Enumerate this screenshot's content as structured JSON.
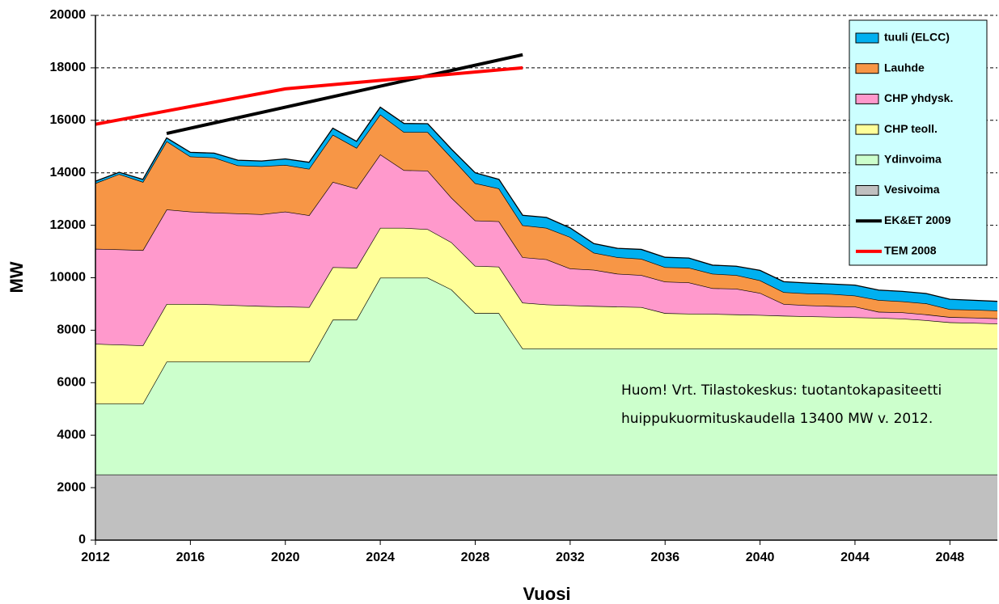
{
  "chart_data": {
    "type": "stacked-area",
    "x_label": "Vuosi",
    "y_label": "MW",
    "x": [
      2012,
      2013,
      2014,
      2015,
      2016,
      2017,
      2018,
      2019,
      2020,
      2021,
      2022,
      2023,
      2024,
      2025,
      2026,
      2027,
      2028,
      2029,
      2030,
      2031,
      2032,
      2033,
      2034,
      2035,
      2036,
      2037,
      2038,
      2039,
      2040,
      2041,
      2042,
      2043,
      2044,
      2045,
      2046,
      2047,
      2048,
      2049,
      2050
    ],
    "xlim": [
      2012,
      2050
    ],
    "xticks": [
      2012,
      2016,
      2020,
      2024,
      2028,
      2032,
      2036,
      2040,
      2044,
      2048
    ],
    "ylim": [
      0,
      20000
    ],
    "yticks": [
      0,
      2000,
      4000,
      6000,
      8000,
      10000,
      12000,
      14000,
      16000,
      18000,
      20000
    ],
    "grid": true,
    "series": [
      {
        "name": "Vesivoima",
        "color": "#c0c0c0",
        "kind": "area",
        "values": [
          2500,
          2500,
          2500,
          2500,
          2500,
          2500,
          2500,
          2500,
          2500,
          2500,
          2500,
          2500,
          2500,
          2500,
          2500,
          2500,
          2500,
          2500,
          2500,
          2500,
          2500,
          2500,
          2500,
          2500,
          2500,
          2500,
          2500,
          2500,
          2500,
          2500,
          2500,
          2500,
          2500,
          2500,
          2500,
          2500,
          2500,
          2500,
          2500
        ]
      },
      {
        "name": "Ydinvoima",
        "color": "#ccffcc",
        "kind": "area",
        "values": [
          2700,
          2700,
          2700,
          4300,
          4300,
          4300,
          4300,
          4300,
          4300,
          4300,
          5900,
          5900,
          7500,
          7500,
          7500,
          7050,
          6150,
          6150,
          4800,
          4800,
          4800,
          4800,
          4800,
          4800,
          4800,
          4800,
          4800,
          4800,
          4800,
          4800,
          4800,
          4800,
          4800,
          4800,
          4800,
          4800,
          4800,
          4800,
          4800
        ]
      },
      {
        "name": "CHP teoll.",
        "color": "#ffff99",
        "kind": "area",
        "values": [
          2280,
          2250,
          2220,
          2200,
          2200,
          2180,
          2150,
          2120,
          2100,
          2080,
          2000,
          1980,
          1900,
          1900,
          1850,
          1800,
          1800,
          1770,
          1750,
          1680,
          1650,
          1620,
          1600,
          1580,
          1350,
          1330,
          1320,
          1300,
          1280,
          1250,
          1230,
          1210,
          1190,
          1170,
          1140,
          1080,
          1000,
          980,
          950
        ]
      },
      {
        "name": "CHP yhdysk.",
        "color": "#ff99cc",
        "kind": "area",
        "values": [
          3620,
          3630,
          3630,
          3600,
          3520,
          3500,
          3500,
          3500,
          3620,
          3500,
          3250,
          3020,
          2800,
          2200,
          2230,
          1700,
          1730,
          1730,
          1730,
          1720,
          1400,
          1380,
          1250,
          1220,
          1200,
          1190,
          980,
          980,
          840,
          450,
          420,
          410,
          410,
          230,
          240,
          220,
          200,
          200,
          200
        ]
      },
      {
        "name": "Lauhde",
        "color": "#f79646",
        "kind": "area",
        "values": [
          2500,
          2870,
          2600,
          2600,
          2100,
          2100,
          1830,
          1830,
          1780,
          1770,
          1800,
          1550,
          1520,
          1450,
          1470,
          1530,
          1420,
          1250,
          1220,
          1200,
          1200,
          650,
          630,
          620,
          550,
          560,
          550,
          520,
          480,
          450,
          450,
          460,
          420,
          450,
          420,
          420,
          300,
          300,
          300
        ]
      },
      {
        "name": "tuuli (ELCC)",
        "color": "#00b0f0",
        "kind": "area",
        "values": [
          80,
          70,
          100,
          130,
          160,
          170,
          200,
          200,
          230,
          250,
          250,
          250,
          280,
          330,
          320,
          320,
          400,
          350,
          380,
          400,
          350,
          350,
          340,
          360,
          380,
          370,
          330,
          340,
          380,
          400,
          400,
          380,
          400,
          380,
          380,
          380,
          380,
          360,
          350
        ]
      },
      {
        "name": "EK&ET 2009",
        "color": "#000000",
        "kind": "line",
        "x": [
          2015,
          2020,
          2030
        ],
        "values": [
          15500,
          16500,
          18500
        ]
      },
      {
        "name": "TEM 2008",
        "color": "#ff0000",
        "kind": "line",
        "x": [
          2012,
          2020,
          2030
        ],
        "values": [
          15850,
          17200,
          18000
        ]
      }
    ],
    "annotations": [
      "Huom! Vrt. Tilastokeskus: tuotantokapasiteetti",
      "huippukuormituskaudella  13400 MW v. 2012."
    ]
  }
}
